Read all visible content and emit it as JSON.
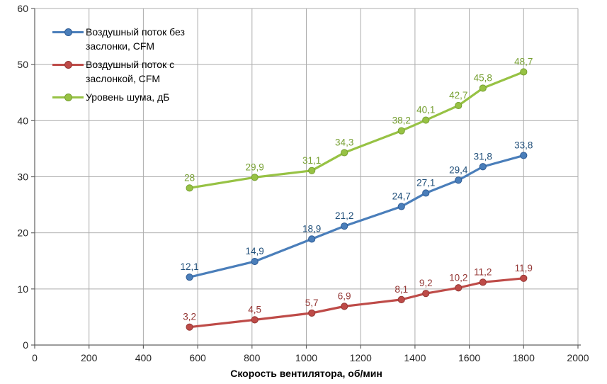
{
  "chart_data": {
    "type": "line",
    "title": "",
    "xlabel": "Скорость вентилятора, об/мин",
    "ylabel": "",
    "xlim": [
      0,
      2000
    ],
    "ylim": [
      0,
      60
    ],
    "x_ticks": [
      0,
      200,
      400,
      600,
      800,
      1000,
      1200,
      1400,
      1600,
      1800,
      2000
    ],
    "y_ticks": [
      0,
      10,
      20,
      30,
      40,
      50,
      60
    ],
    "grid": true,
    "legend_position": "top-left-inside",
    "x": [
      570,
      810,
      1020,
      1140,
      1350,
      1440,
      1560,
      1650,
      1800
    ],
    "series": [
      {
        "name": "Воздушный поток без заслонки, CFM",
        "color": "#4A7EBA",
        "marker_border": "#2E5B94",
        "label_color": "#1F4E79",
        "values": [
          12.1,
          14.9,
          18.9,
          21.2,
          24.7,
          27.1,
          29.4,
          31.8,
          33.8
        ],
        "labels": [
          "12,1",
          "14,9",
          "18,9",
          "21,2",
          "24,7",
          "27,1",
          "29,4",
          "31,8",
          "33,8"
        ]
      },
      {
        "name": "Воздушный поток с заслонкой, CFM",
        "color": "#BE4B48",
        "marker_border": "#953734",
        "label_color": "#943735",
        "values": [
          3.2,
          4.5,
          5.7,
          6.9,
          8.1,
          9.2,
          10.2,
          11.2,
          11.9
        ],
        "labels": [
          "3,2",
          "4,5",
          "5,7",
          "6,9",
          "8,1",
          "9,2",
          "10,2",
          "11,2",
          "11,9"
        ]
      },
      {
        "name": "Уровень шума, дБ",
        "color": "#97C244",
        "marker_border": "#77A033",
        "label_color": "#77A033",
        "values": [
          28,
          29.9,
          31.1,
          34.3,
          38.2,
          40.1,
          42.7,
          45.8,
          48.7
        ],
        "labels": [
          "28",
          "29,9",
          "31,1",
          "34,3",
          "38,2",
          "40,1",
          "42,7",
          "45,8",
          "48,7"
        ]
      }
    ],
    "colors": {
      "gridline": "#ACACAC",
      "axis": "#606060",
      "tick_label": "#262626"
    }
  }
}
